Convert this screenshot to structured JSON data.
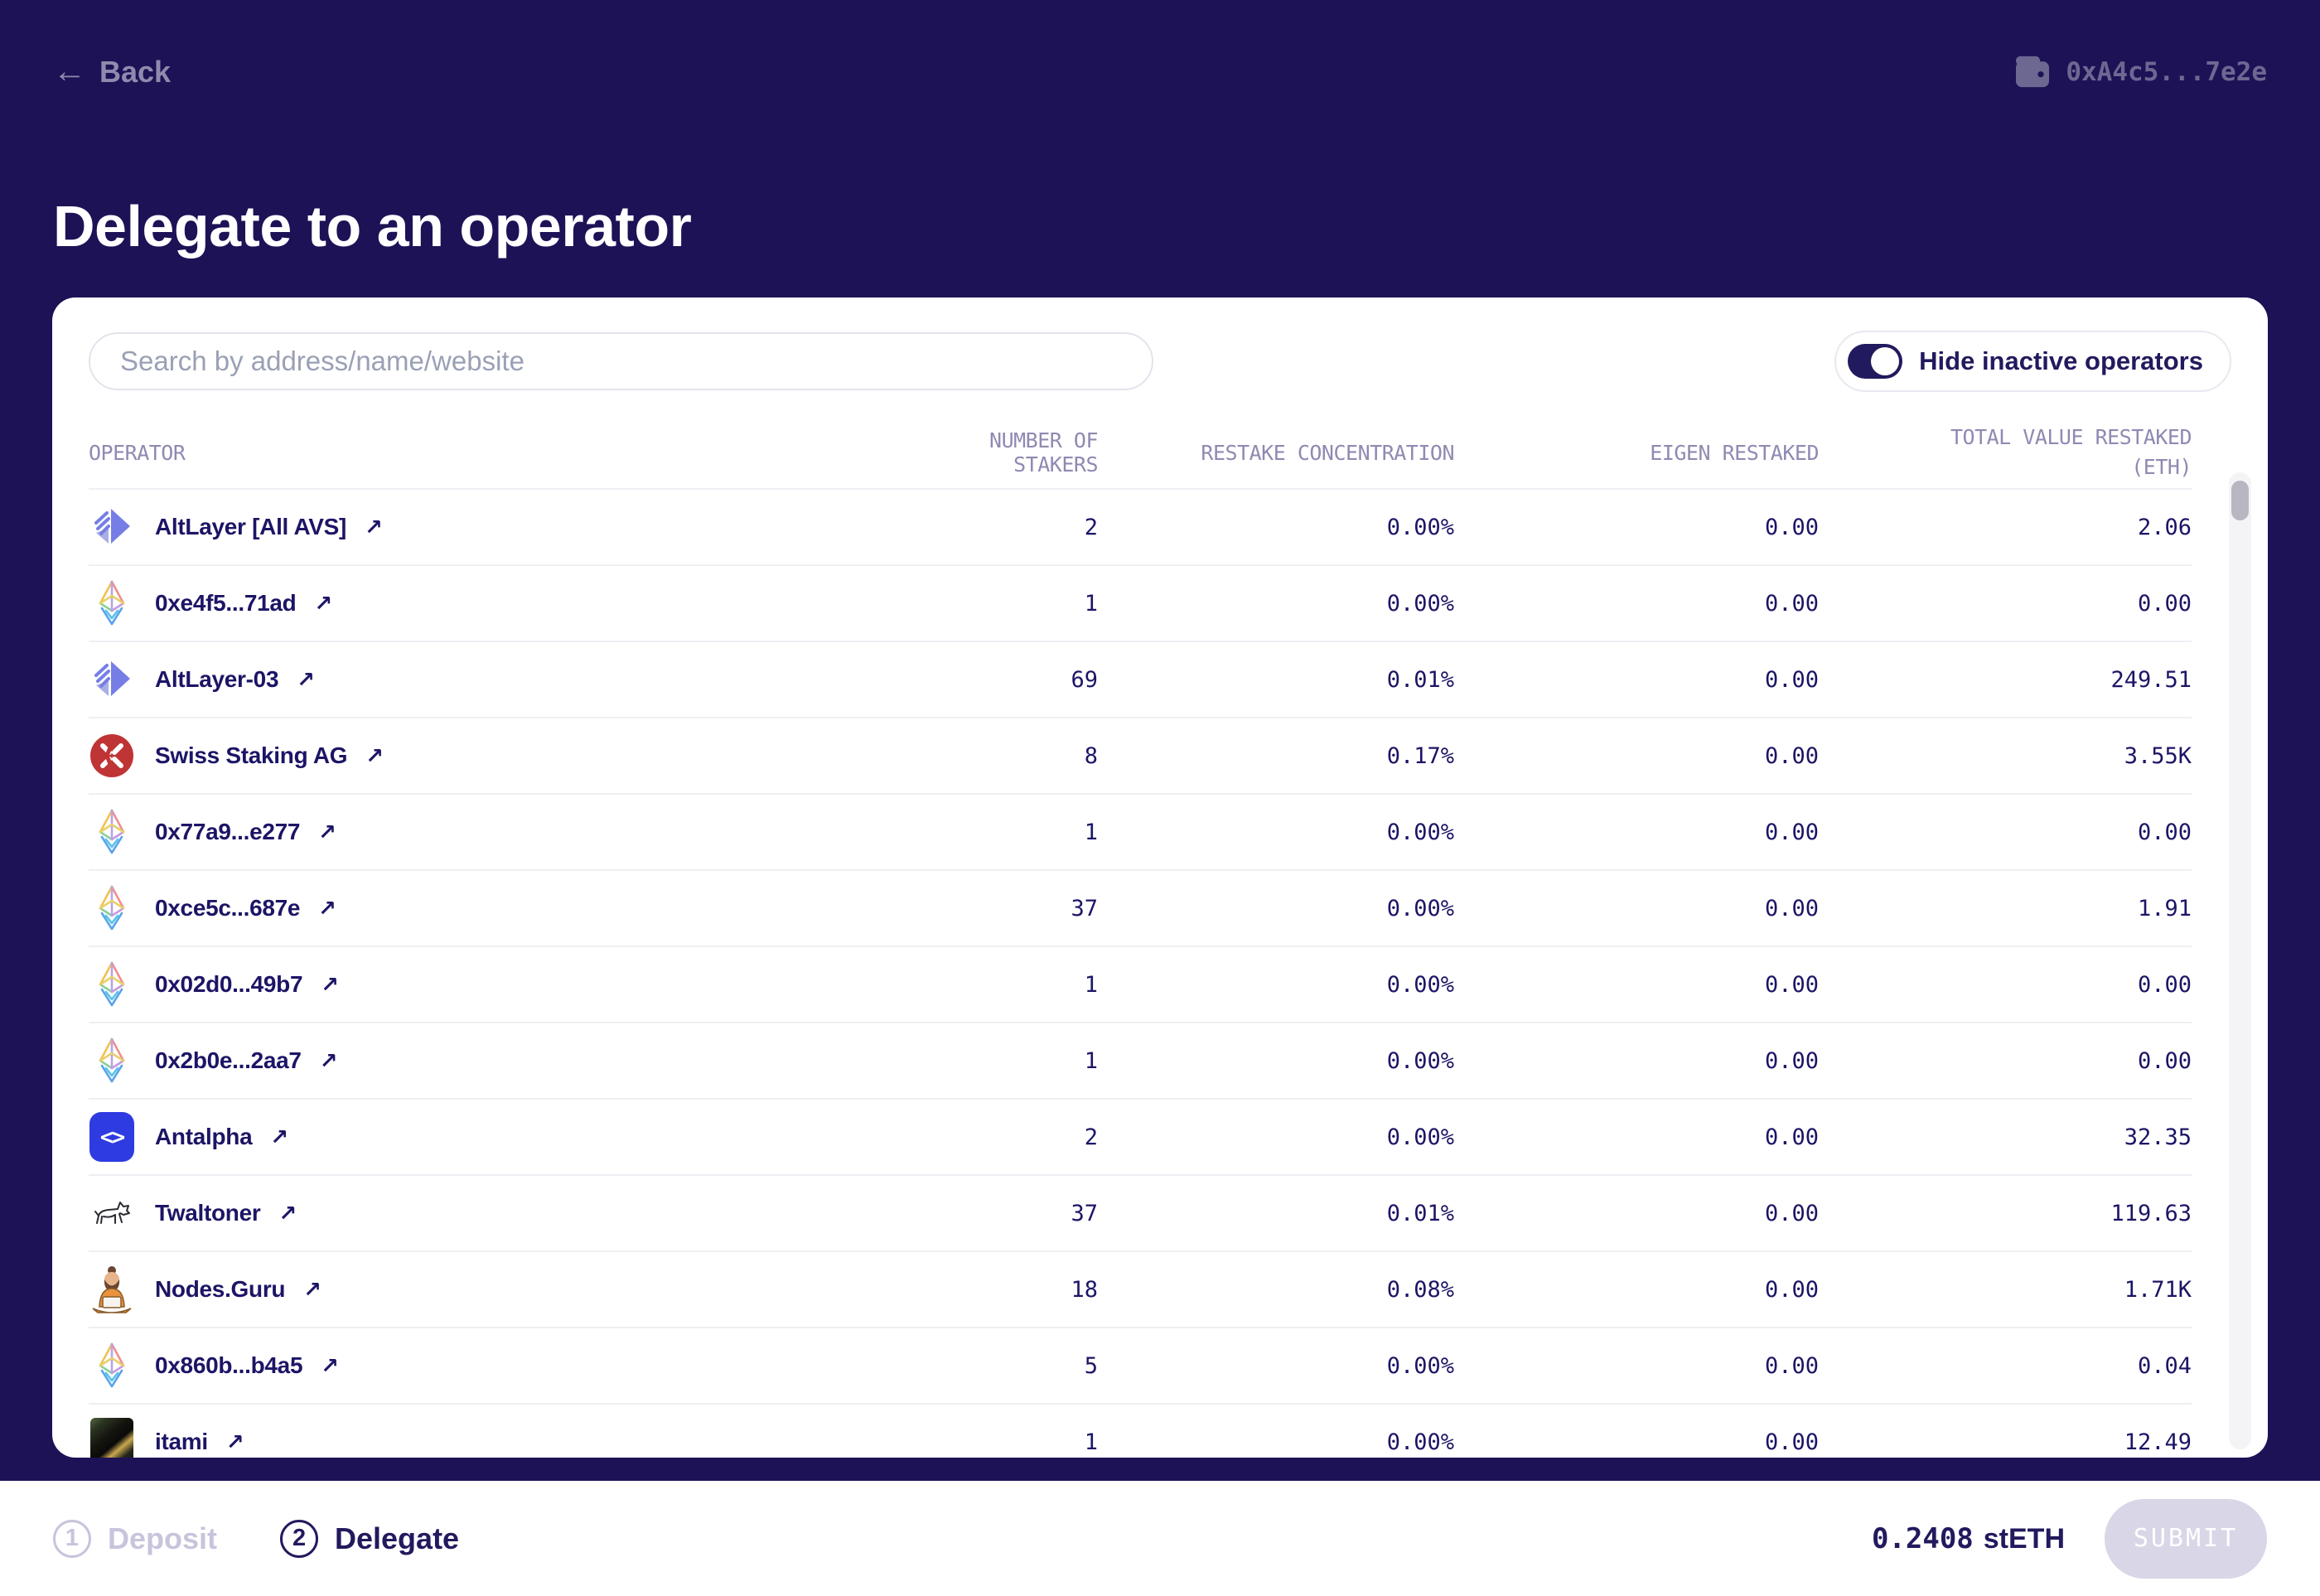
{
  "header": {
    "back_label": "Back",
    "wallet_address": "0xA4c5...7e2e"
  },
  "page_title": "Delegate to an operator",
  "toolbar": {
    "search_placeholder": "Search by address/name/website",
    "toggle_label": "Hide inactive operators",
    "toggle_on": true
  },
  "table": {
    "columns": [
      "OPERATOR",
      "NUMBER OF STAKERS",
      "RESTAKE CONCENTRATION",
      "EIGEN RESTAKED",
      "TOTAL VALUE RESTAKED (ETH)"
    ],
    "rows": [
      {
        "name": "AltLayer [All AVS]",
        "icon": "altlayer-logo",
        "stakers": "2",
        "concentration": "0.00%",
        "eigen": "0.00",
        "total": "2.06"
      },
      {
        "name": "0xe4f5...71ad",
        "icon": "ethereum-logo",
        "stakers": "1",
        "concentration": "0.00%",
        "eigen": "0.00",
        "total": "0.00"
      },
      {
        "name": "AltLayer-03",
        "icon": "altlayer-logo",
        "stakers": "69",
        "concentration": "0.01%",
        "eigen": "0.00",
        "total": "249.51"
      },
      {
        "name": "Swiss Staking AG",
        "icon": "swiss-staking-logo",
        "stakers": "8",
        "concentration": "0.17%",
        "eigen": "0.00",
        "total": "3.55K"
      },
      {
        "name": "0x77a9...e277",
        "icon": "ethereum-logo",
        "stakers": "1",
        "concentration": "0.00%",
        "eigen": "0.00",
        "total": "0.00"
      },
      {
        "name": "0xce5c...687e",
        "icon": "ethereum-logo",
        "stakers": "37",
        "concentration": "0.00%",
        "eigen": "0.00",
        "total": "1.91"
      },
      {
        "name": "0x02d0...49b7",
        "icon": "ethereum-logo",
        "stakers": "1",
        "concentration": "0.00%",
        "eigen": "0.00",
        "total": "0.00"
      },
      {
        "name": "0x2b0e...2aa7",
        "icon": "ethereum-logo",
        "stakers": "1",
        "concentration": "0.00%",
        "eigen": "0.00",
        "total": "0.00"
      },
      {
        "name": "Antalpha",
        "icon": "antalpha-logo",
        "stakers": "2",
        "concentration": "0.00%",
        "eigen": "0.00",
        "total": "32.35"
      },
      {
        "name": "Twaltoner",
        "icon": "twaltoner-logo",
        "stakers": "37",
        "concentration": "0.01%",
        "eigen": "0.00",
        "total": "119.63"
      },
      {
        "name": "Nodes.Guru",
        "icon": "nodes-guru-logo",
        "stakers": "18",
        "concentration": "0.08%",
        "eigen": "0.00",
        "total": "1.71K"
      },
      {
        "name": "0x860b...b4a5",
        "icon": "ethereum-logo",
        "stakers": "5",
        "concentration": "0.00%",
        "eigen": "0.00",
        "total": "0.04"
      },
      {
        "name": "itami",
        "icon": "photo-avatar",
        "stakers": "1",
        "concentration": "0.00%",
        "eigen": "0.00",
        "total": "12.49"
      }
    ]
  },
  "footer": {
    "steps": [
      {
        "number": "1",
        "label": "Deposit",
        "active": false
      },
      {
        "number": "2",
        "label": "Delegate",
        "active": true
      }
    ],
    "amount_value": "0.2408",
    "amount_token": "stETH",
    "submit_label": "SUBMIT"
  },
  "colors": {
    "background": "#1d1256",
    "card": "#ffffff",
    "primary_text": "#1c1566",
    "accent_navy": "#221a5e",
    "muted_header": "#8e8ab2",
    "disabled": "#d9d6e7",
    "antalpha_blue": "#2e3be1",
    "swiss_red": "#bf3434",
    "altlayer_purple": "#767ee6"
  }
}
